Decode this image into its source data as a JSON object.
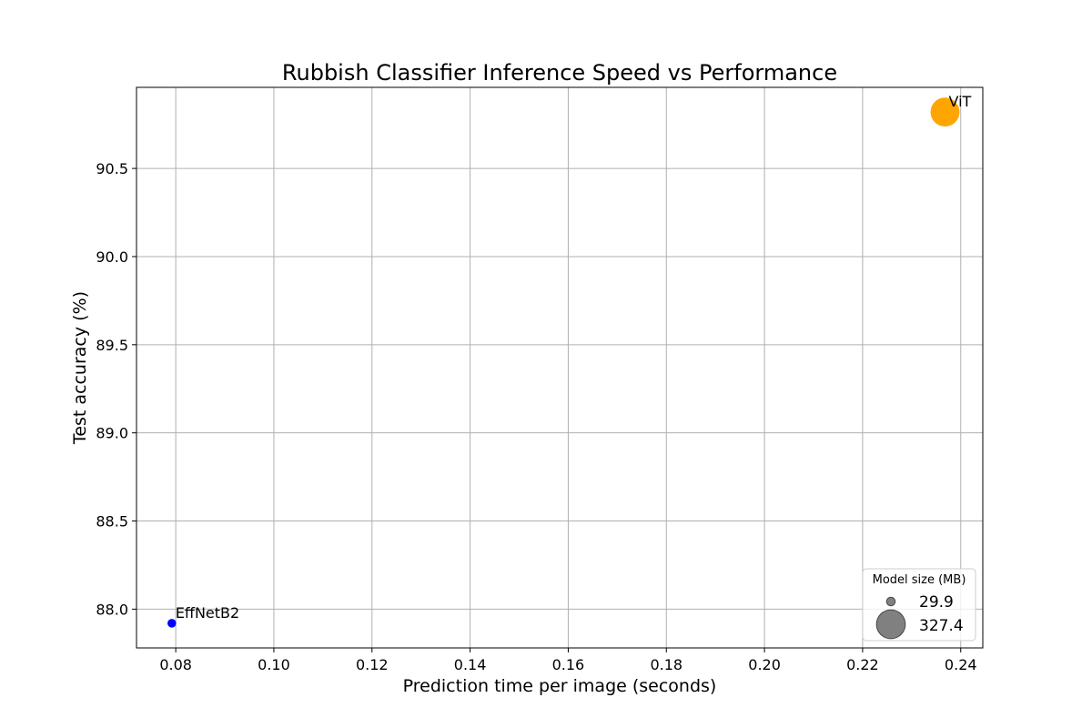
{
  "chart_data": {
    "type": "scatter",
    "title": "Rubbish Classifier Inference Speed vs Performance",
    "xlabel": "Prediction time per image (seconds)",
    "ylabel": "Test accuracy (%)",
    "xlim": [
      0.072,
      0.2445
    ],
    "ylim": [
      87.78,
      90.96
    ],
    "xticks": [
      0.08,
      0.1,
      0.12,
      0.14,
      0.16,
      0.18,
      0.2,
      0.22,
      0.24
    ],
    "xtick_labels": [
      "0.08",
      "0.10",
      "0.12",
      "0.14",
      "0.16",
      "0.18",
      "0.20",
      "0.22",
      "0.24"
    ],
    "yticks": [
      88.0,
      88.5,
      89.0,
      89.5,
      90.0,
      90.5
    ],
    "ytick_labels": [
      "88.0",
      "88.5",
      "89.0",
      "89.5",
      "90.0",
      "90.5"
    ],
    "grid": true,
    "points": [
      {
        "label": "EffNetB2",
        "x": 0.0792,
        "y": 87.92,
        "size_mb": 29.9,
        "color": "#0000ff"
      },
      {
        "label": "ViT",
        "x": 0.2368,
        "y": 90.82,
        "size_mb": 327.4,
        "color": "#ffa500"
      }
    ],
    "legend": {
      "title": "Model size (MB)",
      "placement": "lower-right",
      "color": "#808080",
      "entries": [
        {
          "label": "29.9",
          "size_mb": 29.9
        },
        {
          "label": "327.4",
          "size_mb": 327.4
        }
      ]
    }
  }
}
